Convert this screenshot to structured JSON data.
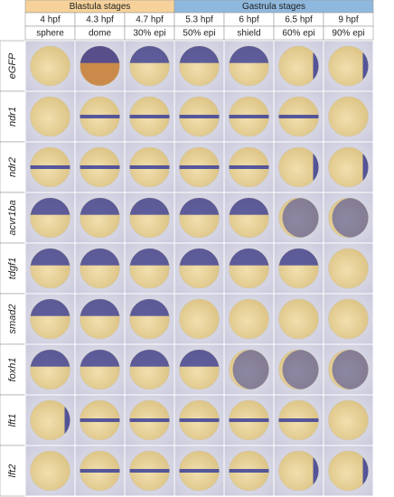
{
  "groups": [
    {
      "label": "Blastula stages"
    },
    {
      "label": "Gastrula stages"
    }
  ],
  "times": [
    "4 hpf",
    "4.3 hpf",
    "4.7 hpf",
    "5.3 hpf",
    "6 hpf",
    "6.5 hpf",
    "9 hpf"
  ],
  "stages": [
    "sphere",
    "dome",
    "30% epi",
    "50% epi",
    "shield",
    "60% epi",
    "90% epi"
  ],
  "genes": [
    "eGFP",
    "ndr1",
    "ndr2",
    "acvr1ba",
    "tdgf1",
    "smad2",
    "foxh1",
    "lft1",
    "lft2"
  ]
}
